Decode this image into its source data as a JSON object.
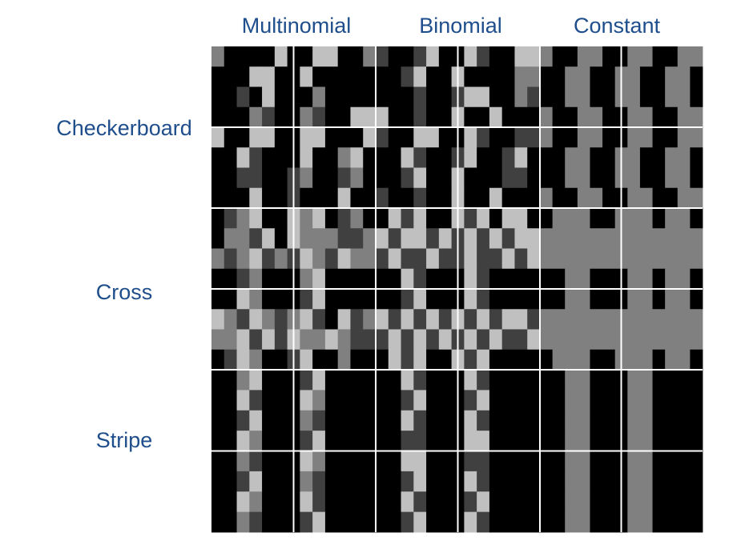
{
  "columns": [
    "Multinomial",
    "Binomial",
    "Constant"
  ],
  "rows": [
    "Checkerboard",
    "Cross",
    "Stripe"
  ],
  "colors": {
    "label": "#1f4e8c",
    "black": "#000000",
    "dark_gray": "#404040",
    "mid_gray": "#808080",
    "light_gray": "#c0c0c0",
    "divider": "#ffffff"
  },
  "panels": {
    "Checkerboard": {
      "Multinomial": [
        "G000KL00LL0KG",
        "00KLL00LK00K0",
        "00DKL00KG00KK",
        "K00GD00GD00LL",
        "L00LL00LL00KL",
        "00LD00KL00GL0",
        "00DD00DG00DG0",
        "K00L00D00KL00"
      ],
      "Binomial": [
        "D00DL00LD00LL",
        "00DL00L0000GG",
        "00KD00DLL00GD",
        "L00D00L00L000",
        "D00LL00LD00DD",
        "00LD00DL00DL0",
        "00DL00L000DD0",
        "D00D00L00L000"
      ],
      "Constant": [
        "G00GG00GG00GG",
        "00GG00GG00GG0",
        "00GG00GG00GG0",
        "G00GG00GG00GG",
        "G00GG00GG00GG",
        "00GG00GG00GG0",
        "00GG00GG00GG0",
        "G00GG00GG00GG"
      ]
    },
    "Cross": {
      "Multinomial": [
        "0DGL00LGL0DG0",
        "KGGDLKLGGGDDG",
        "GDGLDGDLGDLGG",
        "00DG000GL0000",
        "00LG000DL0000",
        "LGDLGDGLDKLDG",
        "GGLDLDLGGLGDD",
        "0DLG00DL00G00"
      ],
      "Binomial": [
        "0LDL00LDL0LL0",
        "LDLLDLDLDLDLL",
        "DLDDLDDLDDLDL",
        "00LD000LD0000",
        "00DL000LD0000",
        "LDLDLDLDLDLLD",
        "DLDLDLDLDLDDL",
        "0LDL00LDL0000"
      ],
      "Constant": [
        "0GGG00GGG0GG0",
        "GGGGGGGGGGGGG",
        "GGGGGGGGGGGGG",
        "00GG000GG0GG0",
        "00GG000GG0GG0",
        "GGGGGGGGGGGGG",
        "GGGGGGGGGGGGG",
        "0GGG00GGG0GG0"
      ]
    },
    "Stripe": {
      "Multinomial": [
        "00GL000DL0000",
        "00LD000LG0000",
        "00DL000GD0000",
        "00LG000DL0000",
        "00GD000LG0000",
        "00DL000GD0000",
        "00LG000LD0000",
        "00GD000DL0000"
      ],
      "Binomial": [
        "00LD000LD0000",
        "00DL000DL0000",
        "00LD000LD0000",
        "00DD000LL0000",
        "00LL000DD0000",
        "00DL000LD0000",
        "00LD000DL0000",
        "00DL000LD0000"
      ],
      "Constant": [
        "00GG000GG0000",
        "00GG000GG0000",
        "00GG000GG0000",
        "00GG000GG0000",
        "00GG000GG0000",
        "00GG000GG0000",
        "00GG000GG0000",
        "00GG000GG0000"
      ]
    }
  }
}
